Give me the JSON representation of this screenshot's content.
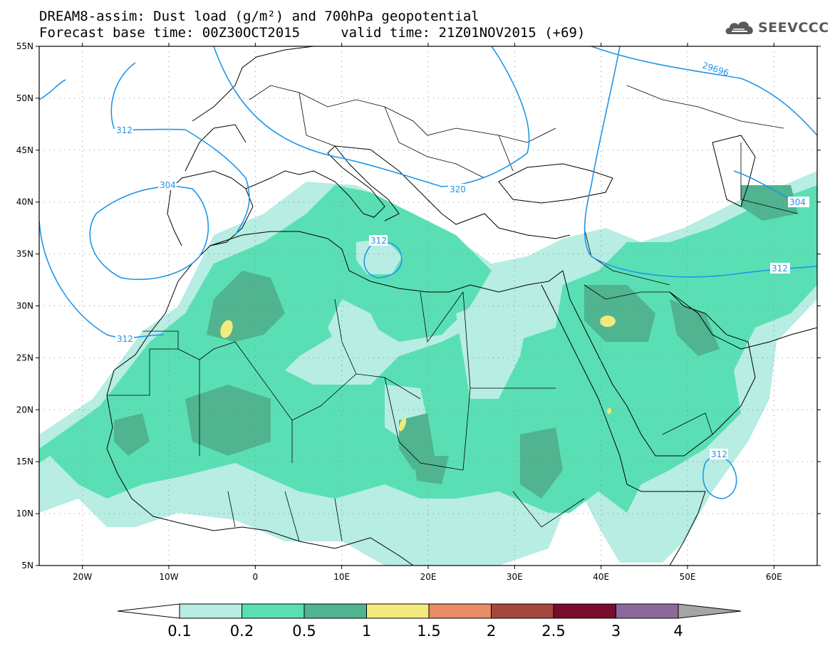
{
  "header": {
    "title_line1": "DREAM8-assim: Dust load (g/m²) and 700hPa geopotential",
    "title_line2": "Forecast base time: 00Z30OCT2015     valid time: 21Z01NOV2015 (+69)"
  },
  "logo": {
    "text": "SEEVCCC",
    "icon": "cloud-logo-icon"
  },
  "map": {
    "lat_labels": [
      "55N",
      "50N",
      "45N",
      "40N",
      "35N",
      "30N",
      "25N",
      "20N",
      "15N",
      "10N",
      "5N"
    ],
    "lon_labels": [
      "20W",
      "10W",
      "0",
      "10E",
      "20E",
      "30E",
      "40E",
      "50E",
      "60E"
    ],
    "lon_range": [
      -25,
      65
    ],
    "lat_range": [
      5,
      55
    ],
    "gridlines": true,
    "contour_labels": [
      "304",
      "312",
      "29696",
      "320",
      "312",
      "304",
      "312",
      "312",
      "312"
    ]
  },
  "colorbar": {
    "labels": [
      "0.1",
      "0.2",
      "0.5",
      "1",
      "1.5",
      "2",
      "2.5",
      "3",
      "4"
    ],
    "colors": [
      "#ffffff",
      "#b7ede3",
      "#5adfb5",
      "#4fb48f",
      "#f3e97c",
      "#ea8c66",
      "#a4483d",
      "#7a0c2e",
      "#8b6a9b",
      "#a5a5a5"
    ]
  },
  "colors": {
    "dust_low": "#b7ede3",
    "dust_mid": "#5adfb5",
    "dust_high": "#4fb48f",
    "dust_peak": "#f3e97c",
    "geopotential_contour": "#1e96e8"
  }
}
